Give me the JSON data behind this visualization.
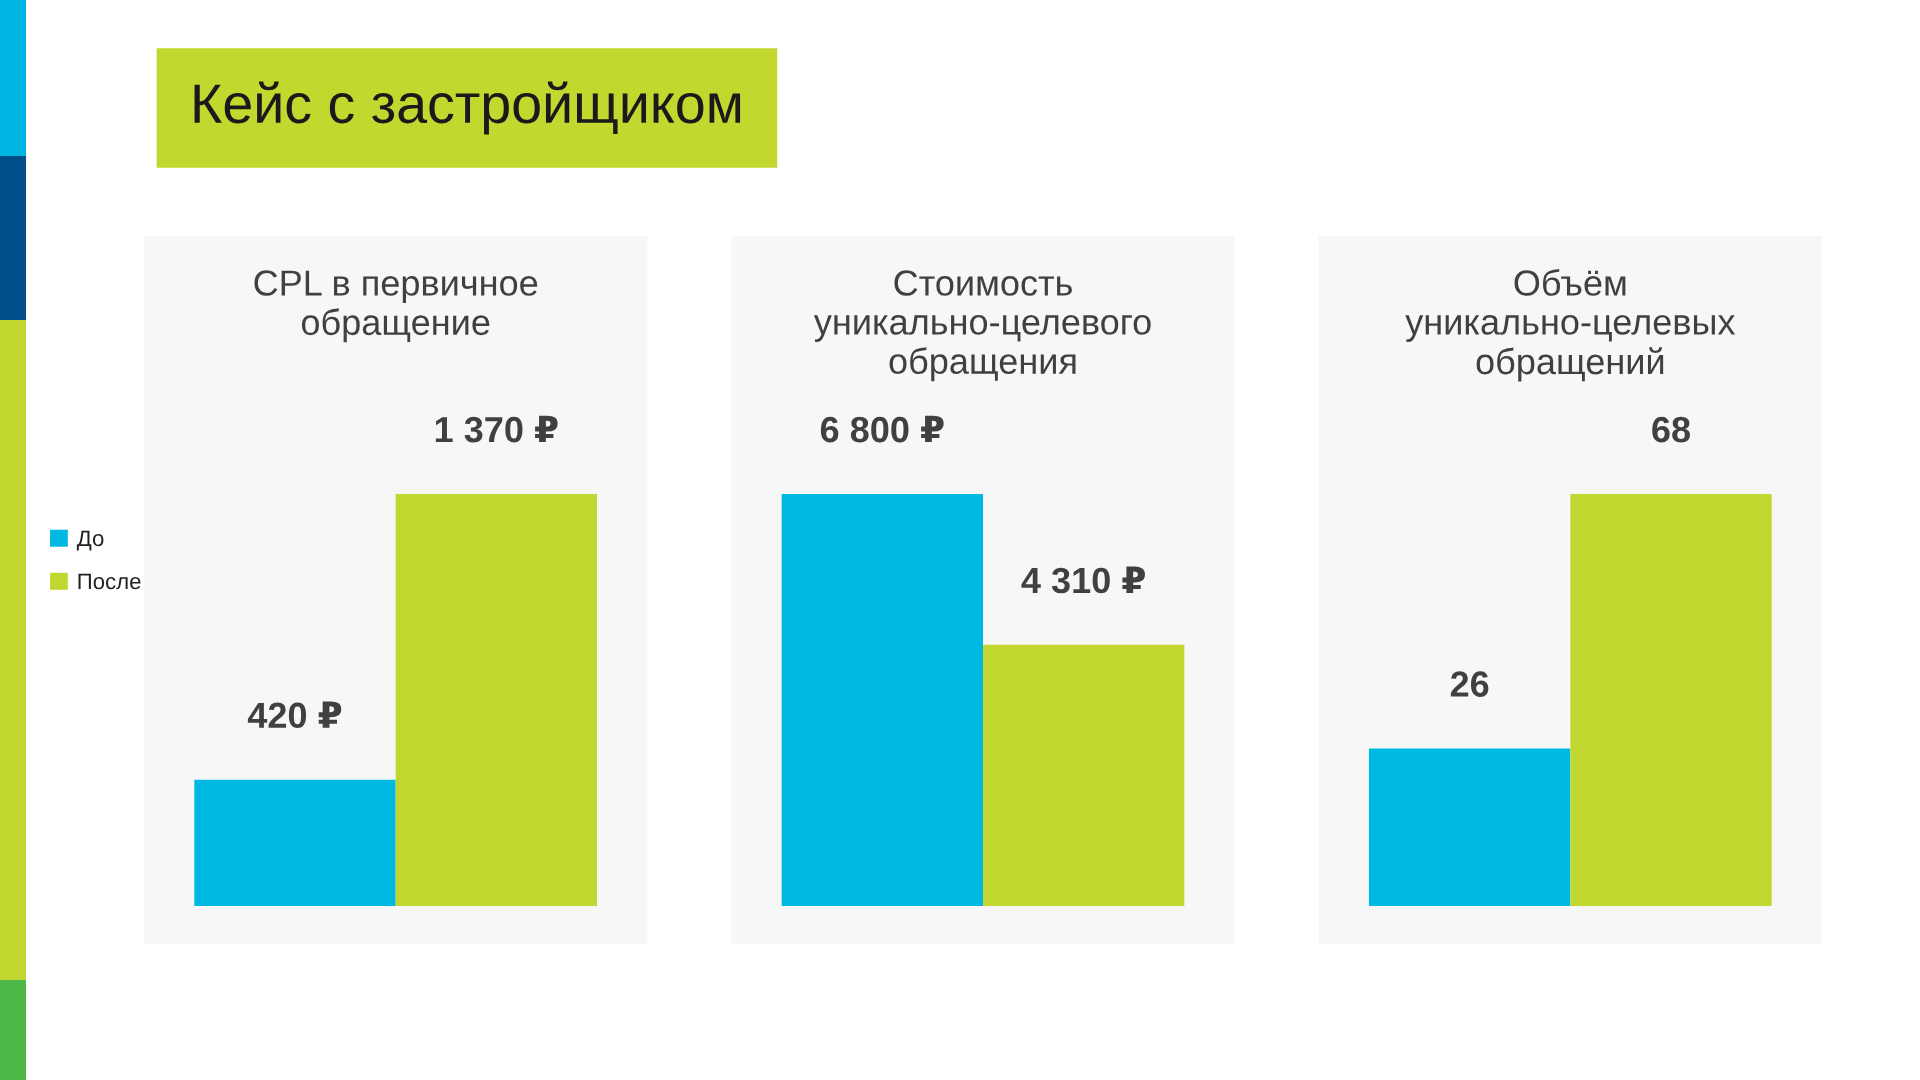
{
  "chart_data": [
    {
      "type": "bar",
      "title": "CPL в первичное\nобращение",
      "annotations": [
        "Кейс с застройщиком"
      ],
      "categories": [
        null
      ],
      "series": [
        {
          "name": "До",
          "color": "#00b9e3",
          "values": [
            420
          ],
          "value_labels": [
            "420 ₽"
          ]
        },
        {
          "name": "После",
          "color": "#c1d72f",
          "values": [
            1370
          ],
          "value_labels": [
            "1 370 ₽"
          ]
        }
      ],
      "legend": "left"
    },
    {
      "type": "bar",
      "title": "Стоимость\nуникально-целевого\nобращения",
      "categories": [
        null
      ],
      "series": [
        {
          "color": "#00b9e3",
          "values": [
            6800
          ],
          "value_labels": [
            "6 800 ₽"
          ]
        },
        {
          "color": "#c1d72f",
          "values": [
            4310
          ],
          "value_labels": [
            "4 310 ₽"
          ]
        }
      ]
    },
    {
      "type": "bar",
      "title": "Объём\nуникально-целевых\nобращений",
      "categories": [
        null
      ],
      "series": [
        {
          "color": "#00b9e3",
          "values": [
            26
          ],
          "value_labels": [
            "26"
          ]
        },
        {
          "color": "#c1d72f",
          "values": [
            68
          ],
          "value_labels": [
            "68"
          ]
        }
      ]
    }
  ]
}
